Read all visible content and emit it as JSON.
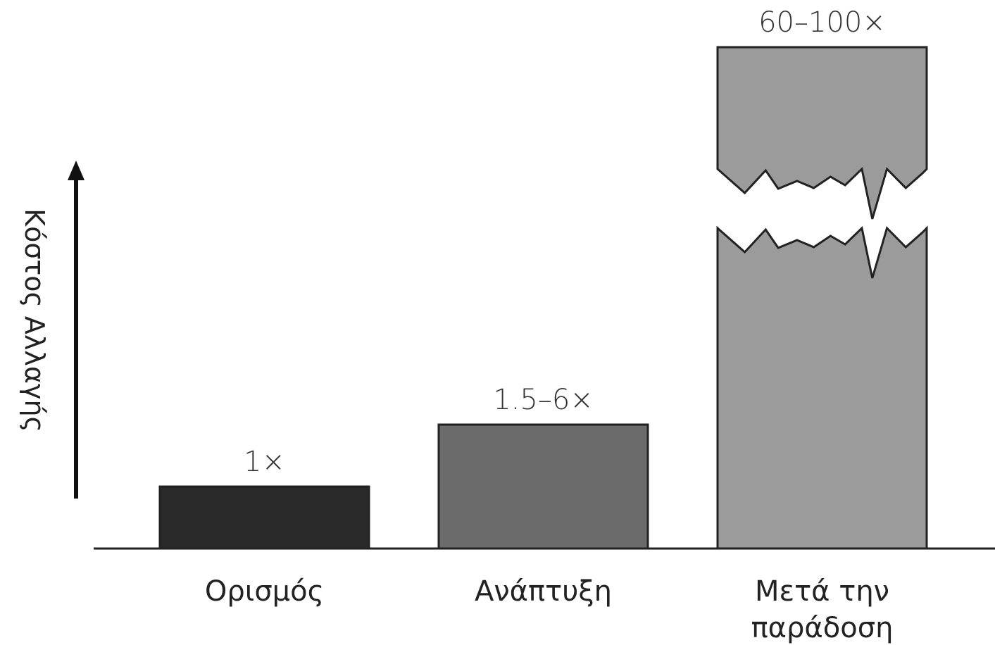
{
  "chart_data": {
    "type": "bar",
    "ylabel": "Κόστος Αλλαγής",
    "categories": [
      {
        "lines": [
          "Ορισμός"
        ]
      },
      {
        "lines": [
          "Ανάπτυξη"
        ]
      },
      {
        "lines": [
          "Μετά την",
          "παράδοση"
        ]
      }
    ],
    "value_labels": [
      "1×",
      "1.5–6×",
      "60–100×"
    ],
    "values": [
      1,
      2,
      80
    ],
    "axis_break_on": [
      2
    ],
    "colors": [
      "#2a2a2a",
      "#6b6b6b",
      "#9b9b9b"
    ],
    "grid": false,
    "legend": "none"
  }
}
